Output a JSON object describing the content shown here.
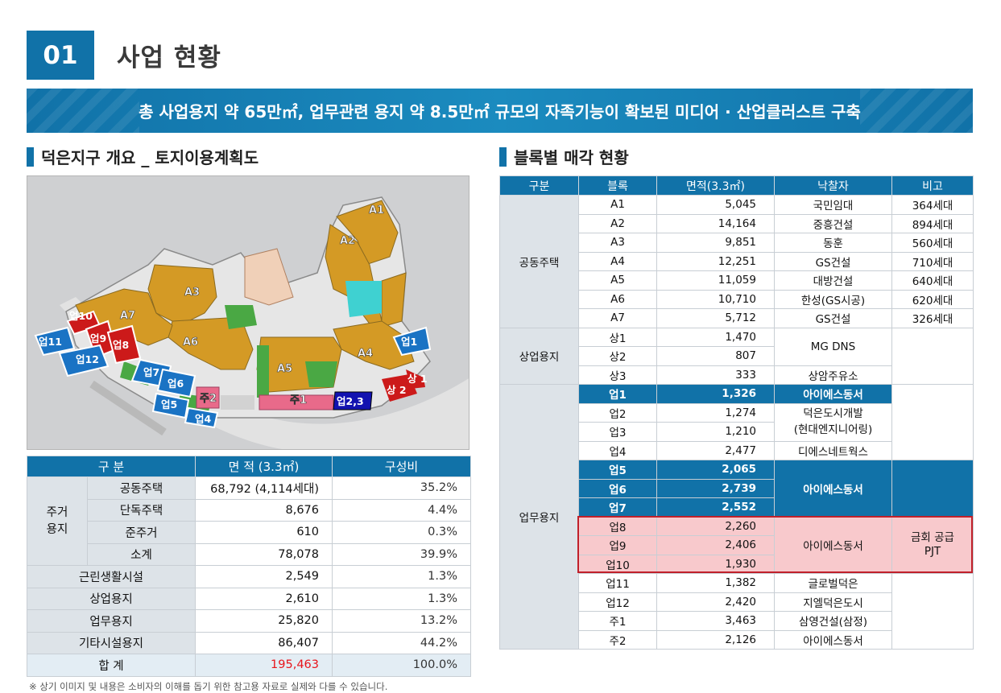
{
  "section": {
    "number": "01",
    "title": "사업 현황"
  },
  "banner": "총 사업용지 약 65만㎡, 업무관련 용지 약 8.5만㎡ 규모의 자족기능이 확보된 미디어 · 산업클러스트 구축",
  "left_heading": "덕은지구 개요 _ 토지이용계획도",
  "right_heading": "블록별 매각 현황",
  "map_labels": {
    "A1": "A1",
    "A2": "A2",
    "A3": "A3",
    "A4": "A4",
    "A5": "A5",
    "A6": "A6",
    "A7": "A7",
    "up1": "업1",
    "up4": "업4",
    "up5": "업5",
    "up6": "업6",
    "up7": "업7",
    "up8": "업8",
    "up9": "업9",
    "up10": "업10",
    "up11": "업11",
    "up12": "업12",
    "up23": "업2,3",
    "ju1": "주1",
    "ju2": "주2",
    "sang1": "상 1",
    "sang2": "상 2"
  },
  "summary": {
    "headers": [
      "구 분",
      "면 적 (3.3㎡)",
      "구성비"
    ],
    "housing_group": "주거\n용지",
    "housing_rows": [
      {
        "name": "공동주택",
        "area": "68,792 (4,114세대)",
        "ratio": "35.2%"
      },
      {
        "name": "단독주택",
        "area": "8,676",
        "ratio": "4.4%"
      },
      {
        "name": "준주거",
        "area": "610",
        "ratio": "0.3%"
      },
      {
        "name": "소계",
        "area": "78,078",
        "ratio": "39.9%"
      }
    ],
    "other_rows": [
      {
        "name": "근린생활시설",
        "area": "2,549",
        "ratio": "1.3%"
      },
      {
        "name": "상업용지",
        "area": "2,610",
        "ratio": "1.3%"
      },
      {
        "name": "업무용지",
        "area": "25,820",
        "ratio": "13.2%"
      },
      {
        "name": "기타시설용지",
        "area": "86,407",
        "ratio": "44.2%"
      }
    ],
    "total": {
      "name": "합 계",
      "area": "195,463",
      "ratio": "100.0%"
    }
  },
  "blocks": {
    "headers": [
      "구분",
      "블록",
      "면적(3.3㎡)",
      "낙찰자",
      "비고"
    ],
    "categories": {
      "apt": "공동주택",
      "com": "상업용지",
      "biz": "업무용지"
    },
    "apt": [
      {
        "block": "A1",
        "area": "5,045",
        "winner": "국민임대",
        "note": "364세대"
      },
      {
        "block": "A2",
        "area": "14,164",
        "winner": "중흥건설",
        "note": "894세대"
      },
      {
        "block": "A3",
        "area": "9,851",
        "winner": "동훈",
        "note": "560세대"
      },
      {
        "block": "A4",
        "area": "12,251",
        "winner": "GS건설",
        "note": "710세대"
      },
      {
        "block": "A5",
        "area": "11,059",
        "winner": "대방건설",
        "note": "640세대"
      },
      {
        "block": "A6",
        "area": "10,710",
        "winner": "한성(GS시공)",
        "note": "620세대"
      },
      {
        "block": "A7",
        "area": "5,712",
        "winner": "GS건설",
        "note": "326세대"
      }
    ],
    "com": [
      {
        "block": "상1",
        "area": "1,470"
      },
      {
        "block": "상2",
        "area": "807"
      },
      {
        "block": "상3",
        "area": "333",
        "winner": "상암주유소"
      }
    ],
    "com_winner_12": "MG DNS",
    "biz": [
      {
        "block": "업1",
        "area": "1,326",
        "winner": "아이에스동서"
      },
      {
        "block": "업2",
        "area": "1,274"
      },
      {
        "block": "업3",
        "area": "1,210"
      },
      {
        "block": "업4",
        "area": "2,477",
        "winner": "디에스네트웍스"
      },
      {
        "block": "업5",
        "area": "2,065"
      },
      {
        "block": "업6",
        "area": "2,739"
      },
      {
        "block": "업7",
        "area": "2,552"
      },
      {
        "block": "업8",
        "area": "2,260"
      },
      {
        "block": "업9",
        "area": "2,406"
      },
      {
        "block": "업10",
        "area": "1,930"
      },
      {
        "block": "업11",
        "area": "1,382",
        "winner": "글로벌덕은"
      },
      {
        "block": "업12",
        "area": "2,420",
        "winner": "지엘덕은도시"
      },
      {
        "block": "주1",
        "area": "3,463",
        "winner": "삼영건설(삼정)"
      },
      {
        "block": "주2",
        "area": "2,126",
        "winner": "아이에스동서"
      }
    ],
    "biz_winner_23": "덕은도시개발\n(현대엔지니어링)",
    "biz_winner_567": "아이에스동서",
    "biz_winner_8910": "아이에스동서",
    "biz_note_8910": "금회 공급\nPJT"
  },
  "footnote": "※ 상기 이미지 및 내용은 소비자의 이해를 돕기 위한 참고용 자료로 실제와 다를 수 있습니다."
}
